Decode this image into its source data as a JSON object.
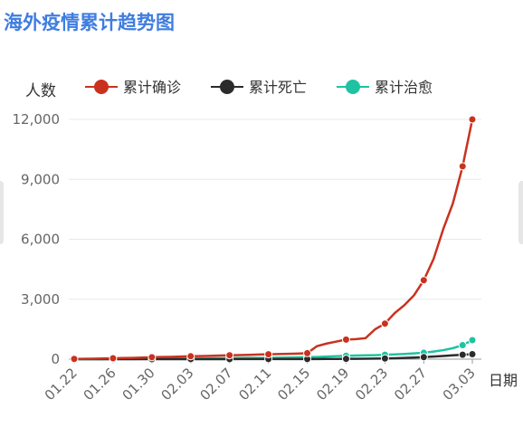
{
  "chart_data": {
    "type": "line",
    "title": "海外疫情累计趋势图",
    "y_label": "人数",
    "x_label": "日期",
    "categories": [
      "01.22",
      null,
      null,
      null,
      "01.26",
      null,
      null,
      null,
      "01.30",
      null,
      null,
      null,
      "02.03",
      null,
      null,
      null,
      "02.07",
      null,
      null,
      null,
      "02.11",
      null,
      null,
      null,
      "02.15",
      null,
      null,
      null,
      "02.19",
      null,
      null,
      null,
      "02.23",
      null,
      null,
      null,
      "02.27",
      null,
      null,
      null,
      null,
      "03.03"
    ],
    "series": [
      {
        "name": "累计确诊",
        "color": "#c9321f",
        "values": [
          10,
          15,
          25,
          35,
          45,
          55,
          65,
          80,
          95,
          105,
          115,
          130,
          145,
          155,
          165,
          180,
          195,
          205,
          215,
          230,
          245,
          255,
          265,
          280,
          300,
          650,
          780,
          880,
          980,
          1000,
          1050,
          1500,
          1780,
          2300,
          2700,
          3200,
          3950,
          5000,
          6500,
          7800,
          9650,
          12000
        ]
      },
      {
        "name": "累计死亡",
        "color": "#2b2b2b",
        "values": [
          0,
          0,
          0,
          0,
          0,
          0,
          0,
          1,
          1,
          1,
          1,
          1,
          2,
          2,
          2,
          2,
          2,
          3,
          3,
          3,
          4,
          4,
          4,
          4,
          5,
          8,
          10,
          12,
          15,
          18,
          22,
          28,
          35,
          45,
          60,
          80,
          100,
          130,
          160,
          190,
          220,
          250
        ]
      },
      {
        "name": "累计治愈",
        "color": "#1fc3a1",
        "values": [
          0,
          0,
          1,
          2,
          3,
          5,
          8,
          10,
          13,
          16,
          20,
          25,
          30,
          35,
          40,
          45,
          50,
          55,
          60,
          65,
          70,
          75,
          80,
          90,
          100,
          110,
          130,
          150,
          170,
          180,
          190,
          200,
          220,
          240,
          260,
          290,
          320,
          380,
          450,
          550,
          700,
          950
        ]
      }
    ],
    "ylim": [
      0,
      12000
    ],
    "yticks": [
      0,
      {
        "value": 3000,
        "label": "3,000"
      },
      {
        "value": 6000,
        "label": "6,000"
      },
      {
        "value": 9000,
        "label": "9,000"
      },
      {
        "value": 12000,
        "label": "12,000"
      }
    ],
    "grid": true
  }
}
